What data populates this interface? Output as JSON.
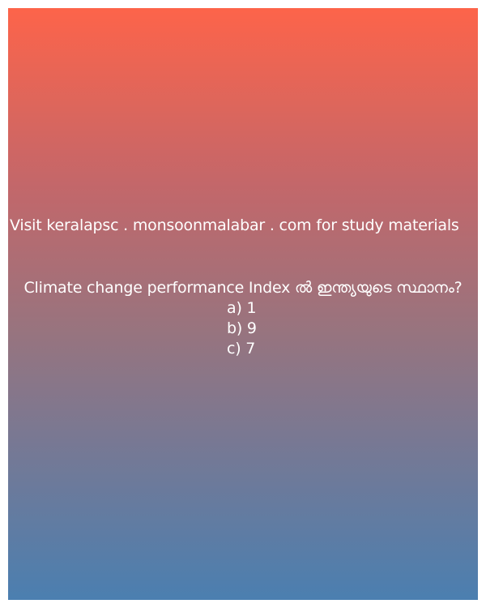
{
  "promo_text": "Visit keralapsc . monsoonmalabar . com for study materials",
  "question": "Climate change performance Index ൽ ഇന്ത്യയുടെ സ്ഥാനം?",
  "options": [
    "a) 1",
    "b) 9",
    "c) 7"
  ],
  "colors": {
    "gradient_top": "#fd644a",
    "gradient_bottom": "#4b7fb0",
    "text": "#ffffff",
    "page_background": "#ffffff"
  }
}
